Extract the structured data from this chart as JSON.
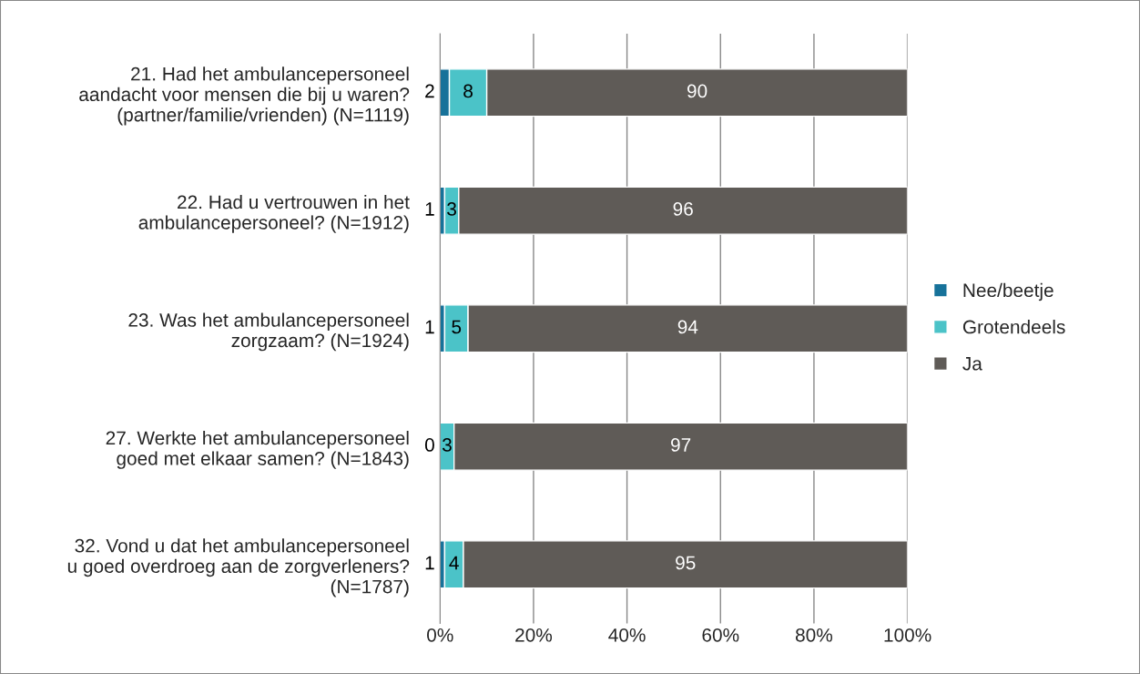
{
  "chart_data": {
    "type": "bar",
    "orientation": "horizontal",
    "stacked": true,
    "categories": [
      "21. Had het ambulancepersoneel\naandacht voor mensen die bij u waren?\n(partner/familie/vrienden) (N=1119)",
      "22. Had u vertrouwen in het\nambulancepersoneel? (N=1912)",
      "23. Was het ambulancepersoneel\nzorgzaam? (N=1924)",
      "27. Werkte het ambulancepersoneel\ngoed met elkaar samen? (N=1843)",
      "32. Vond u dat het ambulancepersoneel\nu goed overdroeg aan de zorgverleners?\n(N=1787)"
    ],
    "series": [
      {
        "name": "Nee/beetje",
        "color": "#17729a",
        "values": [
          2,
          1,
          1,
          0,
          1
        ]
      },
      {
        "name": "Grotendeels",
        "color": "#4bc3c8",
        "values": [
          8,
          3,
          5,
          3,
          4
        ]
      },
      {
        "name": "Ja",
        "color": "#5f5b57",
        "values": [
          90,
          96,
          94,
          97,
          95
        ]
      }
    ],
    "xlim": [
      0,
      100
    ],
    "xticks": [
      {
        "value": 0,
        "label": "0%"
      },
      {
        "value": 20,
        "label": "20%"
      },
      {
        "value": 40,
        "label": "40%"
      },
      {
        "value": 60,
        "label": "60%"
      },
      {
        "value": 80,
        "label": "80%"
      },
      {
        "value": 100,
        "label": "100%"
      }
    ],
    "grid": "x",
    "legend": "right",
    "data_labels": true
  }
}
